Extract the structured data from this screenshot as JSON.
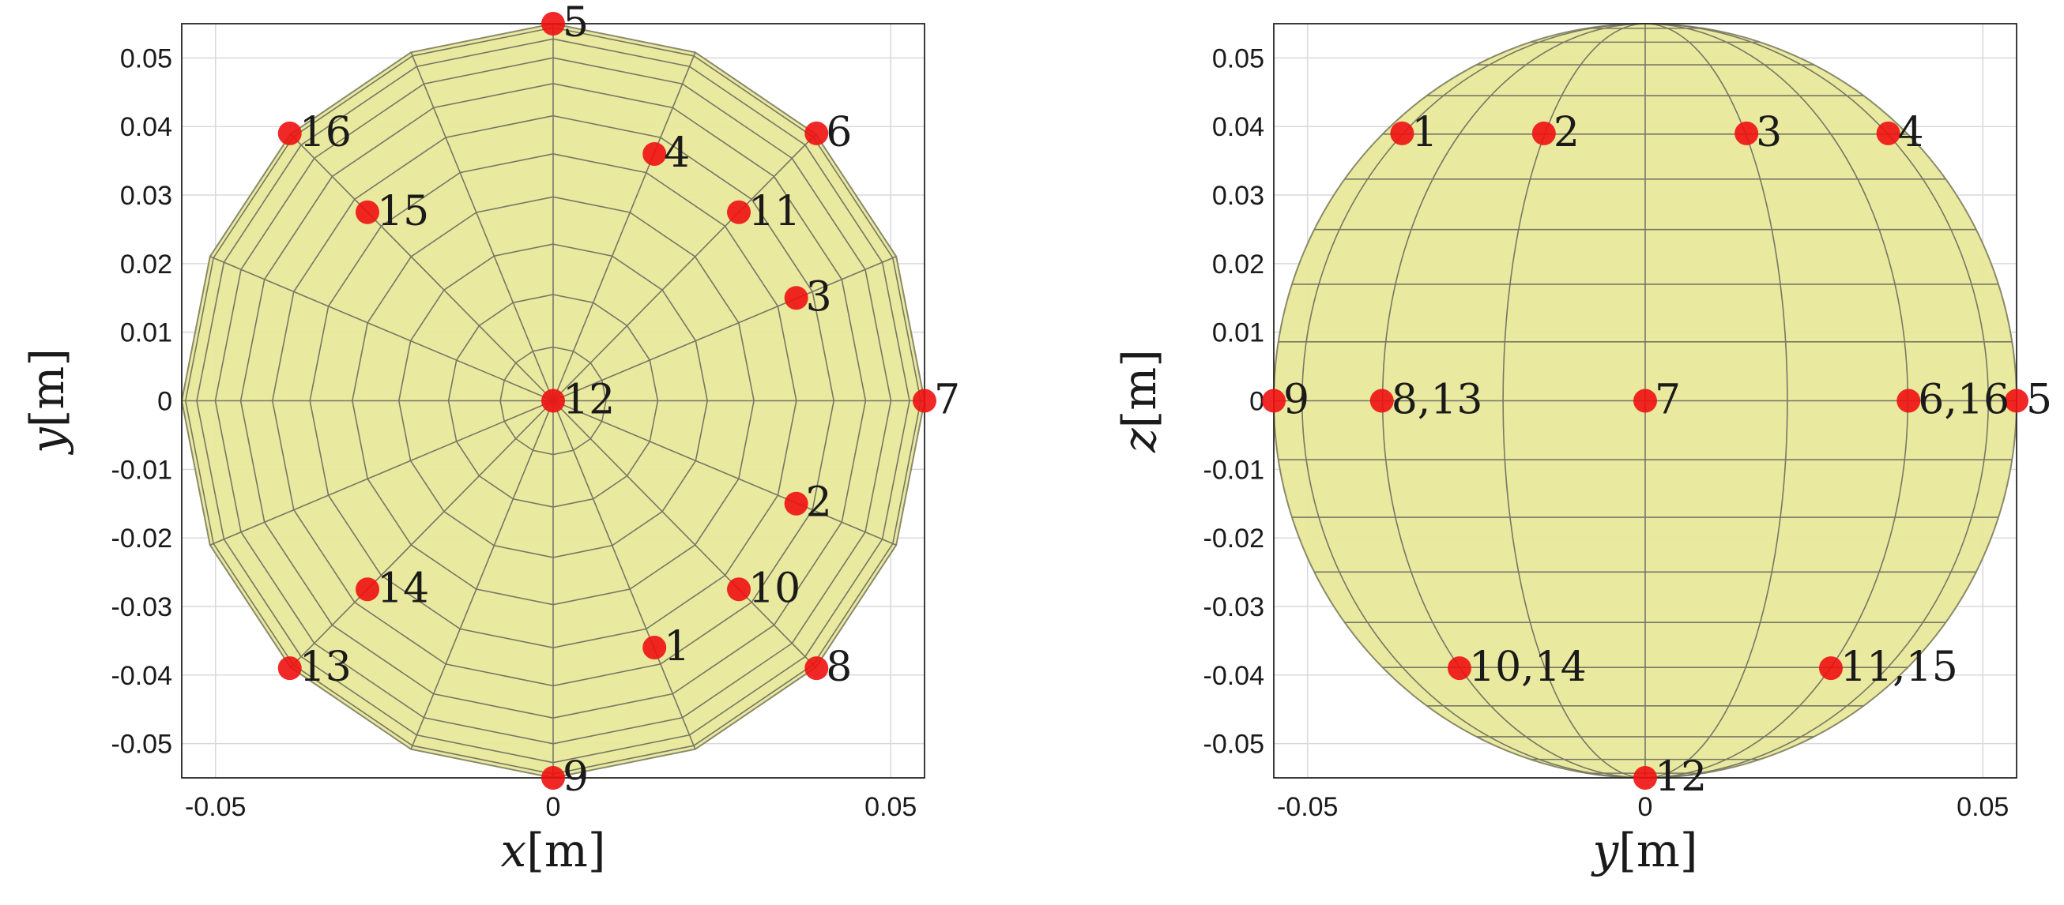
{
  "chart_data": [
    {
      "type": "scatter",
      "xlabel_var": "x",
      "ylabel_var": "y",
      "unit": "[m]",
      "xlim": [
        -0.055,
        0.055
      ],
      "ylim": [
        -0.055,
        0.055
      ],
      "xticks": [
        -0.05,
        0,
        0.05
      ],
      "xtick_labels": [
        "-0.05",
        "0",
        "0.05"
      ],
      "yticks": [
        0.05,
        0.04,
        0.03,
        0.02,
        0.01,
        0,
        -0.01,
        -0.02,
        -0.03,
        -0.04,
        -0.05
      ],
      "ytick_labels": [
        "0.05",
        "0.04",
        "0.03",
        "0.02",
        "0.01",
        "0",
        "-0.01",
        "-0.02",
        "-0.03",
        "-0.04",
        "-0.05"
      ],
      "grid": true,
      "background_shape": "sphere-top-view",
      "shape_color": "#e8e89a",
      "point_color": "#ee1111",
      "points": [
        {
          "label": "1",
          "x": 0.015,
          "y": -0.036
        },
        {
          "label": "2",
          "x": 0.036,
          "y": -0.015
        },
        {
          "label": "3",
          "x": 0.036,
          "y": 0.015
        },
        {
          "label": "4",
          "x": 0.015,
          "y": 0.036
        },
        {
          "label": "5",
          "x": 0.0,
          "y": 0.055
        },
        {
          "label": "6",
          "x": 0.039,
          "y": 0.039
        },
        {
          "label": "7",
          "x": 0.055,
          "y": 0.0
        },
        {
          "label": "8",
          "x": 0.039,
          "y": -0.039
        },
        {
          "label": "9",
          "x": 0.0,
          "y": -0.055
        },
        {
          "label": "10",
          "x": 0.0275,
          "y": -0.0275
        },
        {
          "label": "11",
          "x": 0.0275,
          "y": 0.0275
        },
        {
          "label": "12",
          "x": 0.0,
          "y": 0.0
        },
        {
          "label": "13",
          "x": -0.039,
          "y": -0.039
        },
        {
          "label": "14",
          "x": -0.0275,
          "y": -0.0275
        },
        {
          "label": "15",
          "x": -0.0275,
          "y": 0.0275
        },
        {
          "label": "16",
          "x": -0.039,
          "y": 0.039
        }
      ]
    },
    {
      "type": "scatter",
      "xlabel_var": "y",
      "ylabel_var": "z",
      "unit": "[m]",
      "xlim": [
        -0.055,
        0.055
      ],
      "ylim": [
        -0.055,
        0.055
      ],
      "xticks": [
        -0.05,
        0,
        0.05
      ],
      "xtick_labels": [
        "-0.05",
        "0",
        "0.05"
      ],
      "yticks": [
        0.05,
        0.04,
        0.03,
        0.02,
        0.01,
        0,
        -0.01,
        -0.02,
        -0.03,
        -0.04,
        -0.05
      ],
      "ytick_labels": [
        "0.05",
        "0.04",
        "0.03",
        "0.02",
        "0.01",
        "0",
        "-0.01",
        "-0.02",
        "-0.03",
        "-0.04",
        "-0.05"
      ],
      "grid": true,
      "background_shape": "sphere-side-view",
      "shape_color": "#e8e89a",
      "point_color": "#ee1111",
      "points": [
        {
          "label": "1",
          "x": -0.036,
          "y": 0.039
        },
        {
          "label": "2",
          "x": -0.015,
          "y": 0.039
        },
        {
          "label": "3",
          "x": 0.015,
          "y": 0.039
        },
        {
          "label": "4",
          "x": 0.036,
          "y": 0.039
        },
        {
          "label": "5",
          "x": 0.055,
          "y": 0.0
        },
        {
          "label": "6,16",
          "x": 0.039,
          "y": 0.0
        },
        {
          "label": "7",
          "x": 0.0,
          "y": 0.0
        },
        {
          "label": "8,13",
          "x": -0.039,
          "y": 0.0
        },
        {
          "label": "9",
          "x": -0.055,
          "y": 0.0
        },
        {
          "label": "10,14",
          "x": -0.0275,
          "y": -0.039
        },
        {
          "label": "11,15",
          "x": 0.0275,
          "y": -0.039
        },
        {
          "label": "12",
          "x": 0.0,
          "y": -0.055
        }
      ]
    }
  ]
}
